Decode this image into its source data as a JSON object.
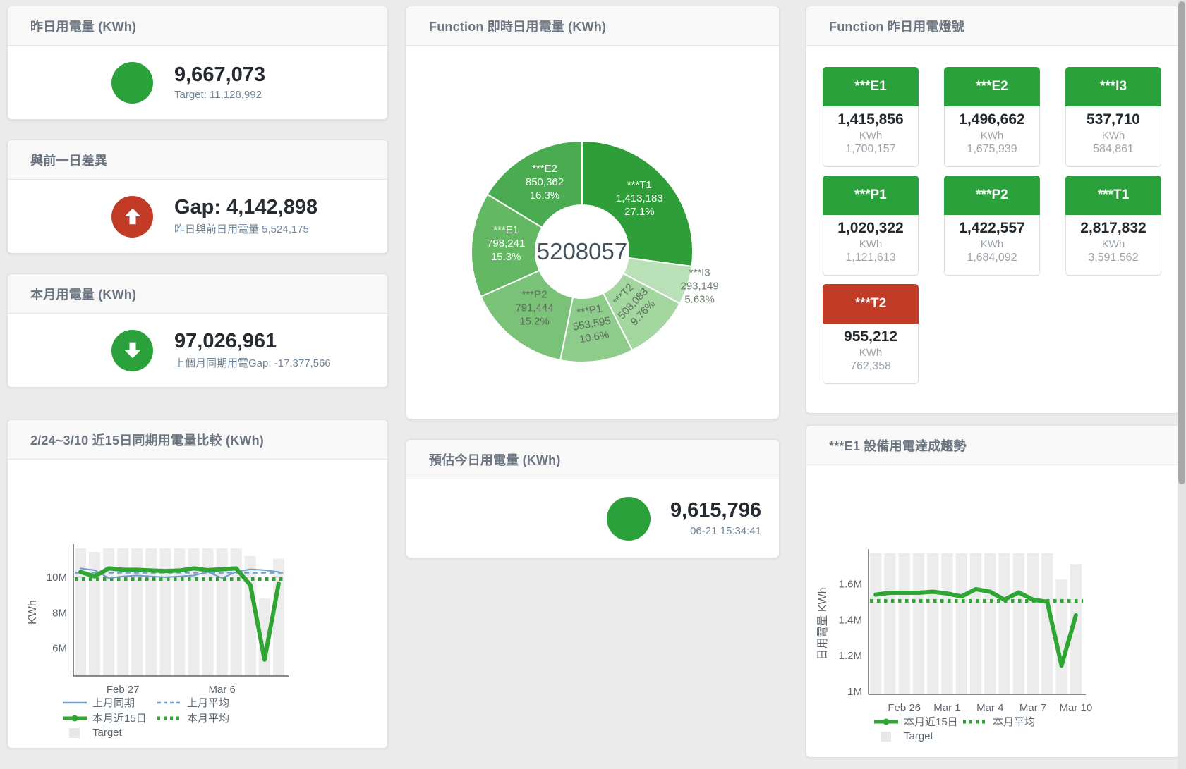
{
  "colors": {
    "green": "#2aa13a",
    "red": "#c13b27",
    "card_title": "#6b7480",
    "value_text": "#262c31",
    "sub_text": "#708499",
    "tile_sub": "#9ba3ab",
    "bar_fill": "#ececec",
    "blue_line": "#6e9fca",
    "green_line": "#2fa633",
    "axis": "#60656b",
    "tick_text": "#5d646c",
    "legend_square": "#e7e7e7"
  },
  "kpi_cards": [
    {
      "title": "昨日用電量 (KWh)",
      "value": "9,667,073",
      "sub": "Target: 11,128,992",
      "icon": "circle",
      "icon_color": "green"
    },
    {
      "title": "與前一日差異",
      "value": "Gap: 4,142,898",
      "sub": "昨日與前日用電量 5,524,175",
      "icon": "arrow-up",
      "icon_color": "red"
    },
    {
      "title": "本月用電量 (KWh)",
      "value": "97,026,961",
      "sub": "上個月同期用電Gap: -17,377,566",
      "icon": "arrow-down",
      "icon_color": "green"
    },
    {
      "title": "預估今日用電量 (KWh)",
      "value": "9,615,796",
      "sub": "06-21 15:34:41",
      "icon": "circle",
      "icon_color": "green"
    }
  ],
  "lights": {
    "title": "Function 昨日用電燈號",
    "tiles": [
      {
        "name": "***E1",
        "value": "1,415,856",
        "unit": "KWh",
        "target": "1,700,157",
        "status": "ok"
      },
      {
        "name": "***E2",
        "value": "1,496,662",
        "unit": "KWh",
        "target": "1,675,939",
        "status": "ok"
      },
      {
        "name": "***I3",
        "value": "537,710",
        "unit": "KWh",
        "target": "584,861",
        "status": "ok"
      },
      {
        "name": "***P1",
        "value": "1,020,322",
        "unit": "KWh",
        "target": "1,121,613",
        "status": "ok"
      },
      {
        "name": "***P2",
        "value": "1,422,557",
        "unit": "KWh",
        "target": "1,684,092",
        "status": "ok"
      },
      {
        "name": "***T1",
        "value": "2,817,832",
        "unit": "KWh",
        "target": "3,591,562",
        "status": "ok"
      },
      {
        "name": "***T2",
        "value": "955,212",
        "unit": "KWh",
        "target": "762,358",
        "status": "alert"
      }
    ]
  },
  "chart_data": [
    {
      "type": "pie",
      "title": "Function 即時日用電量 (KWh)",
      "center_label": "5208057",
      "legend_position": "none",
      "slices": [
        {
          "name": "***T1",
          "value": 1413183,
          "value_label": "1,413,183",
          "percent_label": "27.1%",
          "color": "#2f9e38",
          "label_color": "#ffffff"
        },
        {
          "name": "***I3",
          "value": 293149,
          "value_label": "293,149",
          "percent_label": "5.63%",
          "color": "#b9e0b6",
          "label_color": "#6d7d6d",
          "label_outside": true
        },
        {
          "name": "***T2",
          "value": 508083,
          "value_label": "508,083",
          "percent_label": "9.76%",
          "color": "#a3d79f",
          "label_color": "#5d6d5d",
          "label_rotate": -47
        },
        {
          "name": "***P1",
          "value": 553595,
          "value_label": "553,595",
          "percent_label": "10.6%",
          "color": "#8ecc8b",
          "label_color": "#5d6d5d",
          "label_rotate": -10
        },
        {
          "name": "***P2",
          "value": 791444,
          "value_label": "791,444",
          "percent_label": "15.2%",
          "color": "#79c277",
          "label_color": "#5d6d5d"
        },
        {
          "name": "***E1",
          "value": 798241,
          "value_label": "798,241",
          "percent_label": "15.3%",
          "color": "#64b864",
          "label_color": "#ffffff"
        },
        {
          "name": "***E2",
          "value": 850362,
          "value_label": "850,362",
          "percent_label": "16.3%",
          "color": "#4aab51",
          "label_color": "#ffffff"
        }
      ]
    },
    {
      "type": "line",
      "title": "2/24~3/10 近15日同期用電量比較 (KWh)",
      "ylabel": "KWh",
      "unit": "millions KWh",
      "ylim": [
        4.43,
        11.63
      ],
      "yticks": [
        {
          "v": 6,
          "label": "6M"
        },
        {
          "v": 8,
          "label": "8M"
        },
        {
          "v": 10,
          "label": "10M"
        }
      ],
      "xticks": [
        {
          "i": 3,
          "label": "Feb 27"
        },
        {
          "i": 10,
          "label": "Mar 6"
        }
      ],
      "target": {
        "name": "Target",
        "values": [
          11.63,
          11.43,
          11.63,
          11.63,
          11.63,
          11.63,
          11.63,
          11.63,
          11.63,
          11.63,
          11.63,
          11.63,
          11.2,
          8.8,
          11.05
        ]
      },
      "series": [
        {
          "name": "上月同期",
          "style": "thin",
          "colorKey": "blue_line",
          "values": [
            10.5,
            10.4,
            9.95,
            10.05,
            10.1,
            10.05,
            10.0,
            10.05,
            10.1,
            10.3,
            9.95,
            10.3,
            10.45,
            10.4,
            10.3
          ]
        },
        {
          "name": "本月近15日",
          "style": "thick",
          "colorKey": "green_line",
          "values": [
            10.3,
            10.05,
            10.5,
            10.42,
            10.42,
            10.38,
            10.35,
            10.38,
            10.5,
            10.4,
            10.45,
            10.5,
            9.56,
            5.35,
            9.65
          ]
        }
      ],
      "avg_lines": [
        {
          "name": "上月平均",
          "style": "dashed",
          "colorKey": "blue_line",
          "value": 10.25
        },
        {
          "name": "本月平均",
          "style": "dotted",
          "colorKey": "green_line",
          "value": 9.9
        }
      ],
      "legend_rows": [
        [
          {
            "swatch": "line-blue",
            "label": "上月同期"
          },
          {
            "swatch": "dash-blue",
            "label": "上月平均"
          }
        ],
        [
          {
            "swatch": "thick-green",
            "label": "本月近15日"
          },
          {
            "swatch": "dot-green",
            "label": "本月平均"
          }
        ],
        [
          {
            "swatch": "square-grey",
            "label": "Target"
          }
        ]
      ]
    },
    {
      "type": "line",
      "title": "***E1 設備用電達成趨勢",
      "ylabel": "日用電量 KWh",
      "unit": "millions KWh",
      "ylim": [
        0.985,
        1.77
      ],
      "yticks": [
        {
          "v": 1,
          "label": "1M"
        },
        {
          "v": 1.2,
          "label": "1.2M"
        },
        {
          "v": 1.4,
          "label": "1.4M"
        },
        {
          "v": 1.6,
          "label": "1.6M"
        }
      ],
      "xticks": [
        {
          "i": 2,
          "label": "Feb 26"
        },
        {
          "i": 5,
          "label": "Mar 1"
        },
        {
          "i": 8,
          "label": "Mar 4"
        },
        {
          "i": 11,
          "label": "Mar 7"
        },
        {
          "i": 14,
          "label": "Mar 10"
        }
      ],
      "target": {
        "name": "Target",
        "values": [
          1.77,
          1.77,
          1.77,
          1.77,
          1.77,
          1.77,
          1.77,
          1.77,
          1.77,
          1.77,
          1.77,
          1.77,
          1.77,
          1.624,
          1.71
        ]
      },
      "series": [
        {
          "name": "本月近15日",
          "style": "thick",
          "colorKey": "green_line",
          "values": [
            1.54,
            1.55,
            1.55,
            1.55,
            1.556,
            1.546,
            1.53,
            1.57,
            1.556,
            1.512,
            1.552,
            1.512,
            1.5,
            1.145,
            1.425
          ]
        }
      ],
      "avg_lines": [
        {
          "name": "本月平均",
          "style": "dotted",
          "colorKey": "green_line",
          "value": 1.505
        }
      ],
      "legend_rows": [
        [
          {
            "swatch": "thick-green",
            "label": "本月近15日"
          },
          {
            "swatch": "dot-green",
            "label": "本月平均"
          }
        ],
        [
          {
            "swatch": "square-grey",
            "label": "Target"
          }
        ]
      ]
    }
  ]
}
